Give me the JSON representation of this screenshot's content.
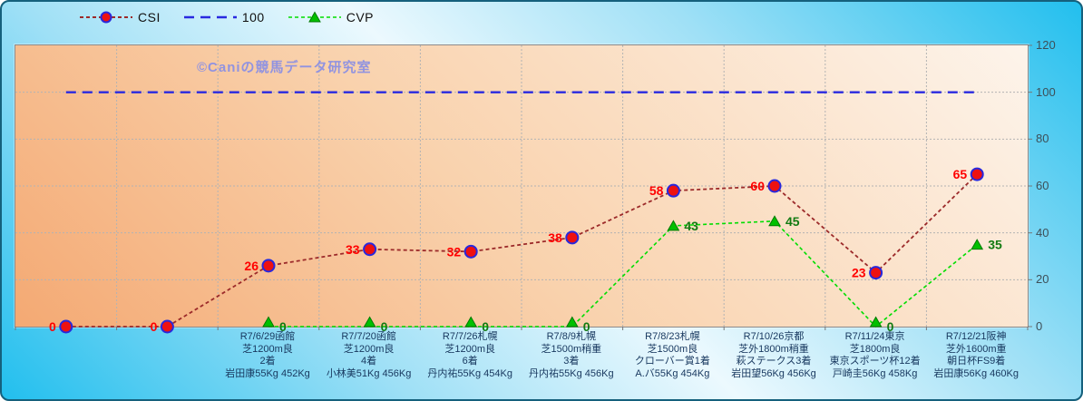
{
  "watermark": "©Caniの競馬データ研究室",
  "legend": {
    "items": [
      {
        "label": "CSI"
      },
      {
        "label": "100"
      },
      {
        "label": "CVP"
      }
    ]
  },
  "colors": {
    "csi_line": "#9c2a2a",
    "csi_marker_fill": "#ee1111",
    "csi_marker_edge": "#2828dd",
    "csi_label": "#ff0000",
    "ref_line": "#2929e0",
    "cvp_line": "#00dd00",
    "cvp_marker_fill": "#00c000",
    "cvp_marker_edge": "#007a00",
    "cvp_label": "#117a11",
    "gridline": "#b3b3b3",
    "plot_border": "#8a8a8a",
    "axis_text": "#17375e",
    "ytick_text": "#3d4f58"
  },
  "chart_data": {
    "type": "line",
    "title": "",
    "xlabel": "",
    "ylabel": "",
    "ylim": [
      0,
      120
    ],
    "yticks": [
      0,
      20,
      40,
      60,
      80,
      100,
      120
    ],
    "grid": true,
    "legend_position": "top",
    "categories": [
      [],
      [],
      [
        "R7/6/29函館",
        "芝1200m良",
        "2着",
        "岩田康55Kg 452Kg"
      ],
      [
        "R7/7/20函館",
        "芝1200m良",
        "4着",
        "小林美51Kg 456Kg"
      ],
      [
        "R7/7/26札幌",
        "芝1200m良",
        "6着",
        "丹内祐55Kg 454Kg"
      ],
      [
        "R7/8/9札幌",
        "芝1500m稍重",
        "3着",
        "丹内祐55Kg 456Kg"
      ],
      [
        "R7/8/23札幌",
        "芝1500m良",
        "クローバー賞1着",
        "A.バ55Kg 454Kg"
      ],
      [
        "R7/10/26京都",
        "芝外1800m稍重",
        "萩ステークス3着",
        "岩田望56Kg 456Kg"
      ],
      [
        "R7/11/24東京",
        "芝1800m良",
        "東京スポーツ杯12着",
        "戸崎圭56Kg 458Kg"
      ],
      [
        "R7/12/21阪神",
        "芝外1600m重",
        "朝日杯FS9着",
        "岩田康56Kg 460Kg"
      ]
    ],
    "series": [
      {
        "name": "CSI",
        "marker": "circle",
        "values": [
          0,
          0,
          26,
          33,
          32,
          38,
          58,
          60,
          23,
          65
        ]
      },
      {
        "name": "100",
        "marker": "none",
        "values": [
          100,
          100,
          100,
          100,
          100,
          100,
          100,
          100,
          100,
          100
        ]
      },
      {
        "name": "CVP",
        "marker": "triangle",
        "values": [
          null,
          null,
          0,
          0,
          0,
          0,
          43,
          45,
          0,
          35
        ]
      }
    ]
  }
}
